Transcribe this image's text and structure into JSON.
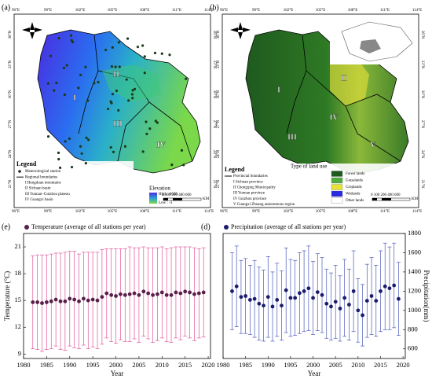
{
  "maps": [
    {
      "panel": "(a)",
      "lon_labels": [
        "96°E",
        "99°E",
        "102°E",
        "105°E",
        "108°E",
        "111°E",
        "114°E"
      ],
      "lat_labels": [
        "21°N",
        "24°N",
        "27°N",
        "30°N",
        "33°N",
        "36°N"
      ],
      "region_labels": [
        "I",
        "II",
        "III",
        "IV"
      ],
      "legend_title": "Legend",
      "legend_items": [
        "Meteorological station",
        "Regional boundaries",
        "I    Hengduan mountains",
        "II   Sichuan basin",
        "III  Yunnan–Guizhou plateau",
        "IV  Guangxi basin"
      ],
      "elevation_title": "Elevation",
      "elevation_high": "High : 6669",
      "elevation_low": "Low : -3",
      "scale": "0  100 200      400      600",
      "scale_unit": "KM"
    },
    {
      "panel": "(b)",
      "lon_labels": [
        "96°E",
        "99°E",
        "102°E",
        "105°E",
        "108°E",
        "111°E",
        "114°E"
      ],
      "lat_labels": [
        "21°N",
        "24°N",
        "27°N",
        "30°N",
        "33°N",
        "36°N"
      ],
      "region_labels": [
        "I",
        "II",
        "III",
        "IV",
        "V"
      ],
      "legend_title": "Legend",
      "legend_items": [
        "Provincial boundaries",
        "I    Sichuan province",
        "II   Chongqing Municipality",
        "III  Yunnan province",
        "IV  Guizhou province",
        "V   Guangxi Zhuang autonomous region"
      ],
      "landuse_title": "Type of land use",
      "landuse_items": [
        "Forest lands",
        "Grasslands",
        "Croplands",
        "Wetlands",
        "Other lands"
      ],
      "landuse_colors": [
        "#1e5a1e",
        "#4fae3a",
        "#e6e23a",
        "#2a2ae0",
        "#ffffff"
      ],
      "scale": "0  100 200      400      600",
      "scale_unit": "KM"
    }
  ],
  "chart_data": [
    {
      "type": "errorbar",
      "panel": "(e)",
      "xlabel": "Year",
      "ylabel": "Temperature (°C)",
      "x": [
        1982,
        1983,
        1984,
        1985,
        1986,
        1987,
        1988,
        1989,
        1990,
        1991,
        1992,
        1993,
        1994,
        1995,
        1996,
        1997,
        1998,
        1999,
        2000,
        2001,
        2002,
        2003,
        2004,
        2005,
        2006,
        2007,
        2008,
        2009,
        2010,
        2011,
        2012,
        2013,
        2014,
        2015,
        2016,
        2017,
        2018,
        2019
      ],
      "series": [
        {
          "name": "Temperature (average of all stations per year)",
          "color": "#5a1f4a",
          "error_color": "#e0559a",
          "values": [
            14.8,
            14.8,
            14.7,
            14.8,
            14.9,
            15.1,
            14.9,
            14.9,
            15.2,
            15.1,
            14.9,
            15.2,
            15.0,
            15.1,
            15.0,
            15.4,
            15.8,
            15.6,
            15.5,
            15.7,
            15.6,
            15.7,
            15.8,
            15.6,
            16.0,
            15.8,
            15.6,
            15.7,
            15.9,
            15.6,
            15.6,
            15.9,
            15.8,
            16.0,
            15.9,
            15.7,
            15.8,
            15.9
          ],
          "errors": [
            5.2,
            5.3,
            5.4,
            5.3,
            5.3,
            5.2,
            5.4,
            5.5,
            5.3,
            5.4,
            5.3,
            5.2,
            5.4,
            5.3,
            5.4,
            5.3,
            5.0,
            5.2,
            5.3,
            5.1,
            5.2,
            5.3,
            5.1,
            5.3,
            5.0,
            5.1,
            5.3,
            5.2,
            5.1,
            5.2,
            5.3,
            5.1,
            5.2,
            5.0,
            5.1,
            5.2,
            5.0,
            5.0
          ]
        }
      ],
      "xlim": [
        1980,
        2020.5
      ],
      "xticks": [
        1980,
        1985,
        1990,
        1995,
        2000,
        2005,
        2010,
        2015,
        2020
      ],
      "ylim": [
        8.5,
        22.5
      ],
      "yticks": [
        9,
        12,
        15,
        18,
        21
      ],
      "yaxis_side": "left"
    },
    {
      "type": "errorbar",
      "panel": "(d)",
      "xlabel": "Year",
      "ylabel": "Precipitation(mm)",
      "x": [
        1982,
        1983,
        1984,
        1985,
        1986,
        1987,
        1988,
        1989,
        1990,
        1991,
        1992,
        1993,
        1994,
        1995,
        1996,
        1997,
        1998,
        1999,
        2000,
        2001,
        2002,
        2003,
        2004,
        2005,
        2006,
        2007,
        2008,
        2009,
        2010,
        2011,
        2012,
        2013,
        2014,
        2015,
        2016,
        2017,
        2018,
        2019
      ],
      "series": [
        {
          "name": "Precipitation (average of all stations per year)",
          "color": "#1c1c6e",
          "error_color": "#4a5ab8",
          "values": [
            1200,
            1250,
            1140,
            1150,
            1110,
            1120,
            1070,
            1050,
            1140,
            1040,
            1110,
            1050,
            1210,
            1130,
            1130,
            1180,
            1200,
            1230,
            1130,
            1190,
            1160,
            1070,
            1040,
            1090,
            1020,
            1130,
            1060,
            1200,
            1000,
            950,
            1100,
            1150,
            1100,
            1200,
            1250,
            1230,
            1260,
            1120
          ],
          "errors": [
            400,
            420,
            380,
            390,
            360,
            400,
            380,
            370,
            420,
            360,
            380,
            360,
            440,
            400,
            390,
            420,
            420,
            440,
            380,
            400,
            390,
            360,
            350,
            380,
            340,
            400,
            370,
            420,
            330,
            320,
            380,
            400,
            370,
            420,
            450,
            430,
            440,
            380
          ]
        }
      ],
      "xlim": [
        1980,
        2020.5
      ],
      "xticks": [
        1980,
        1985,
        1990,
        1995,
        2000,
        2005,
        2010,
        2015,
        2020
      ],
      "ylim": [
        500,
        1800
      ],
      "yticks": [
        600,
        800,
        1000,
        1200,
        1400,
        1600,
        1800
      ],
      "yaxis_side": "right"
    }
  ]
}
